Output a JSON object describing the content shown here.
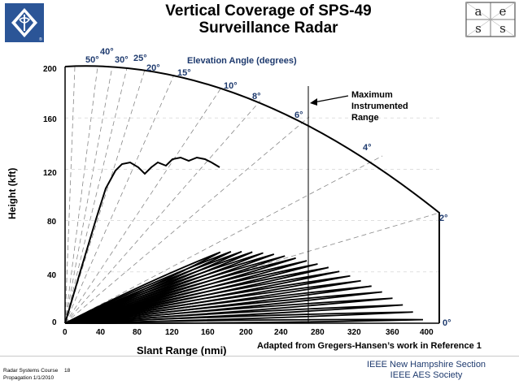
{
  "title": {
    "line1": "Vertical Coverage of SPS-49",
    "line2": "Surveillance Radar"
  },
  "logos": {
    "left": "ieee-logo",
    "right_letters": [
      "a",
      "e",
      "s",
      "s"
    ]
  },
  "chart": {
    "xlabel": "Slant Range (nmi)",
    "ylabel": "Height (kft)",
    "xticks": [
      "0",
      "40",
      "80",
      "120",
      "160",
      "200",
      "240",
      "280",
      "320",
      "360",
      "400"
    ],
    "yticks": [
      "0",
      "40",
      "80",
      "120",
      "160",
      "200"
    ],
    "elevation_title": "Elevation Angle (degrees)",
    "elevation_labels": [
      "50°",
      "40°",
      "30°",
      "25°",
      "20°",
      "15°",
      "10°",
      "8°",
      "6°",
      "4°",
      "2°",
      "0°"
    ],
    "annotation": {
      "line1": "Maximum",
      "line2": "Instrumented",
      "line3": "Range"
    },
    "credit": "Adapted from Gregers-Hansen’s work in Reference 1"
  },
  "chart_data": {
    "type": "line",
    "xlabel": "Slant Range (nmi)",
    "ylabel": "Height (kft)",
    "xlim": [
      0,
      400
    ],
    "ylim": [
      0,
      200
    ],
    "elevation_angles_deg": [
      50,
      40,
      30,
      25,
      20,
      15,
      10,
      8,
      6,
      4,
      2,
      0
    ],
    "max_instrumented_range_nmi": 265
  },
  "footer": {
    "course": "Radar Systems Course",
    "course_page": "18",
    "topic": "Propagation 1/1/2010",
    "org1": "IEEE New Hampshire Section",
    "org2": "IEEE AES Society"
  },
  "colors": {
    "footer_text": "#1e3a6e",
    "logo_blue": "#2b5597"
  }
}
